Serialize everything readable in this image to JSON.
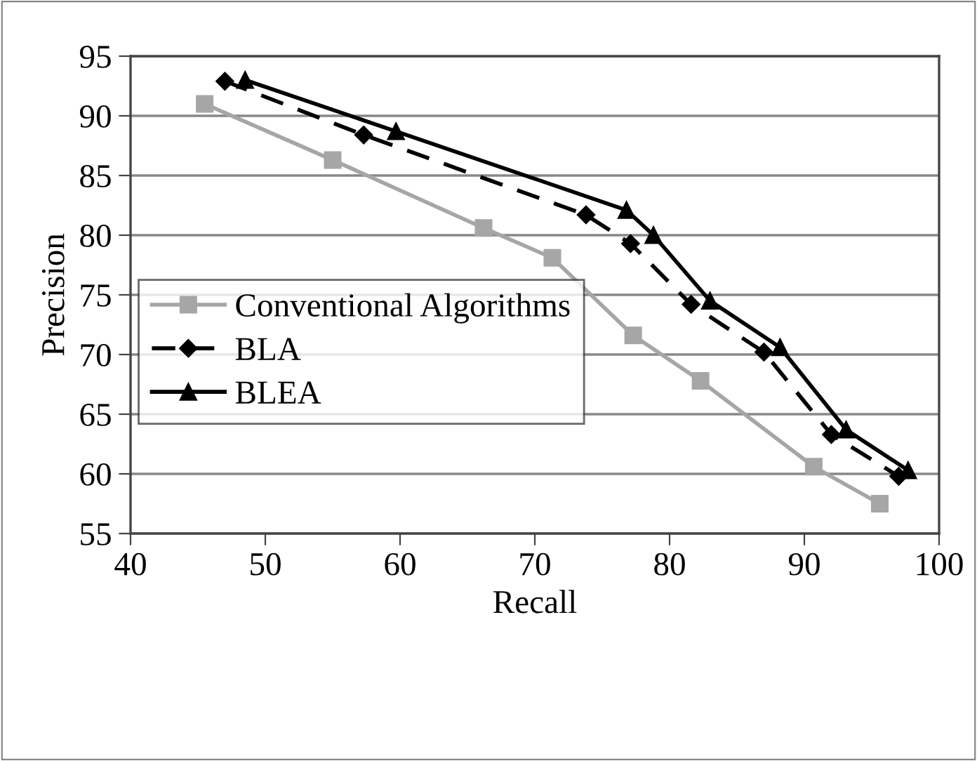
{
  "chart_data": {
    "type": "line",
    "xlabel": "Recall",
    "ylabel": "Precision",
    "xlim": [
      40,
      100
    ],
    "xticks": [
      40,
      50,
      60,
      70,
      80,
      90,
      100
    ],
    "ylim": [
      55,
      95
    ],
    "yticks": [
      55,
      60,
      65,
      70,
      75,
      80,
      85,
      90,
      95
    ],
    "grid": "y",
    "legend": "bottom left",
    "series": [
      {
        "name": "Conventional Algorithms",
        "color": "#a6a6a6",
        "marker": "square",
        "line_style": "solid",
        "x": [
          45.5,
          55,
          66.2,
          71.3,
          77.3,
          82.3,
          90.7,
          95.6
        ],
        "values": [
          91,
          86.3,
          80.6,
          78.1,
          71.6,
          67.8,
          60.6,
          57.5
        ]
      },
      {
        "name": "BLA",
        "color": "#000000",
        "marker": "diamond",
        "line_style": "dashed",
        "x": [
          47,
          57.3,
          73.8,
          77.1,
          81.6,
          87,
          92,
          97
        ],
        "values": [
          92.9,
          88.4,
          81.7,
          79.3,
          74.2,
          70.2,
          63.3,
          59.8
        ]
      },
      {
        "name": "BLEA",
        "color": "#000000",
        "marker": "triangle",
        "line_style": "solid",
        "x": [
          48.5,
          59.7,
          76.8,
          78.8,
          83,
          88.2,
          93.1,
          97.7
        ],
        "values": [
          93,
          88.7,
          82.1,
          80,
          74.5,
          70.6,
          63.7,
          60.3
        ]
      }
    ]
  }
}
